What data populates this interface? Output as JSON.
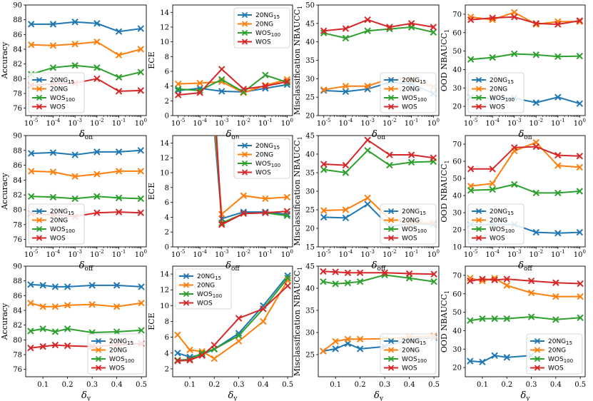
{
  "colors": {
    "blue": "#1f77b4",
    "orange": "#ff7f0e",
    "green": "#2ca02c",
    "red": "#d62728"
  },
  "series_names": [
    "20NG15",
    "20NG",
    "WOS100",
    "WOS"
  ],
  "chart_data": [
    {
      "type": "line",
      "row": 0,
      "col": 0,
      "xscale": "log",
      "x": [
        -5,
        -4,
        -3,
        -2,
        -1,
        0
      ],
      "xticklabels": [
        "10^-5",
        "10^-4",
        "10^-3",
        "10^-2",
        "10^-1",
        "10^0"
      ],
      "xlabel": "δ_on",
      "ylabel": "Accuracy",
      "ylim": [
        75,
        90
      ],
      "yticks": [
        76,
        78,
        80,
        82,
        84,
        86,
        88,
        90
      ],
      "legend": "bottom-left",
      "series": [
        {
          "name": "20NG15",
          "values": [
            87.4,
            87.4,
            87.7,
            87.5,
            86.4,
            86.8
          ]
        },
        {
          "name": "20NG",
          "values": [
            84.6,
            84.5,
            84.7,
            85.0,
            83.2,
            84.0
          ]
        },
        {
          "name": "WOS100",
          "values": [
            80.6,
            81.5,
            81.8,
            81.5,
            80.2,
            80.9
          ]
        },
        {
          "name": "WOS",
          "values": [
            79.1,
            79.3,
            79.4,
            80.0,
            78.3,
            78.4
          ]
        }
      ]
    },
    {
      "type": "line",
      "row": 0,
      "col": 1,
      "xscale": "log",
      "x": [
        -5,
        -4,
        -3,
        -2,
        -1,
        0
      ],
      "xticklabels": [
        "10^-5",
        "10^-4",
        "10^-3",
        "10^-2",
        "10^-1",
        "10^0"
      ],
      "xlabel": "δ_on",
      "ylabel": "ECE",
      "ylim": [
        0,
        15
      ],
      "yticks": [
        0,
        2,
        4,
        6,
        8,
        10,
        12,
        14
      ],
      "legend": "top-right",
      "series": [
        {
          "name": "20NG15",
          "values": [
            3.4,
            3.7,
            3.3,
            3.2,
            3.7,
            4.2
          ]
        },
        {
          "name": "20NG",
          "values": [
            4.3,
            4.4,
            4.6,
            3.1,
            4.1,
            4.9
          ]
        },
        {
          "name": "WOS100",
          "values": [
            3.6,
            3.4,
            4.9,
            3.2,
            5.5,
            4.5
          ]
        },
        {
          "name": "WOS",
          "values": [
            2.8,
            3.1,
            6.3,
            3.6,
            4.0,
            4.6
          ]
        }
      ]
    },
    {
      "type": "line",
      "row": 0,
      "col": 2,
      "xscale": "log",
      "x": [
        -5,
        -4,
        -3,
        -2,
        -1,
        0
      ],
      "xticklabels": [
        "10^-5",
        "10^-4",
        "10^-3",
        "10^-2",
        "10^-1",
        "10^0"
      ],
      "xlabel": "δ_on",
      "ylabel": "Misclassification NBAUCC1",
      "ylim": [
        20,
        50
      ],
      "yticks": [
        20,
        25,
        30,
        35,
        40,
        45,
        50
      ],
      "legend": "bottom-right",
      "series": [
        {
          "name": "20NG15",
          "values": [
            26.8,
            26.5,
            27.2,
            29.0,
            28.6,
            26.0
          ]
        },
        {
          "name": "20NG",
          "values": [
            27.0,
            28.0,
            28.0,
            30.0,
            29.8,
            27.8
          ]
        },
        {
          "name": "WOS100",
          "values": [
            42.4,
            41.0,
            43.0,
            43.5,
            44.0,
            42.6
          ]
        },
        {
          "name": "WOS",
          "values": [
            43.0,
            43.6,
            46.0,
            44.0,
            45.0,
            44.0
          ]
        }
      ]
    },
    {
      "type": "line",
      "row": 0,
      "col": 3,
      "xscale": "log",
      "x": [
        -5,
        -4,
        -3,
        -2,
        -1,
        0
      ],
      "xticklabels": [
        "10^-5",
        "10^-4",
        "10^-3",
        "10^-2",
        "10^-1",
        "10^0"
      ],
      "xlabel": "δ_on",
      "ylabel": "OOD NBAUCC1",
      "ylim": [
        15,
        75
      ],
      "yticks": [
        20,
        30,
        40,
        50,
        60,
        70
      ],
      "legend": "bottom-left",
      "series": [
        {
          "name": "20NG15",
          "values": [
            25.0,
            24.0,
            24.5,
            22.0,
            25.0,
            21.5
          ]
        },
        {
          "name": "20NG",
          "values": [
            68.5,
            67.0,
            71.0,
            64.5,
            66.0,
            66.0
          ]
        },
        {
          "name": "WOS100",
          "values": [
            45.5,
            46.5,
            48.5,
            48.0,
            47.0,
            47.3
          ]
        },
        {
          "name": "WOS",
          "values": [
            67.0,
            68.0,
            68.5,
            65.0,
            64.5,
            66.5
          ]
        }
      ]
    },
    {
      "type": "line",
      "row": 1,
      "col": 0,
      "xscale": "log",
      "x": [
        -5,
        -4,
        -3,
        -2,
        -1,
        0
      ],
      "xticklabels": [
        "10^-5",
        "10^-4",
        "10^-3",
        "10^-2",
        "10^-1",
        "10^0"
      ],
      "xlabel": "δ_off",
      "ylabel": "Accuracy",
      "ylim": [
        75,
        90
      ],
      "yticks": [
        76,
        78,
        80,
        82,
        84,
        86,
        88,
        90
      ],
      "legend": "bottom-left",
      "series": [
        {
          "name": "20NG15",
          "values": [
            87.6,
            87.7,
            87.4,
            87.8,
            87.8,
            88.0
          ]
        },
        {
          "name": "20NG",
          "values": [
            85.2,
            85.1,
            84.5,
            84.8,
            85.2,
            85.2
          ]
        },
        {
          "name": "WOS100",
          "values": [
            81.8,
            81.7,
            81.5,
            81.8,
            81.6,
            81.5
          ]
        },
        {
          "name": "WOS",
          "values": [
            79.5,
            79.3,
            79.1,
            79.6,
            79.7,
            79.6
          ]
        }
      ]
    },
    {
      "type": "line",
      "row": 1,
      "col": 1,
      "xscale": "log",
      "x": [
        -5,
        -4,
        -3,
        -2,
        -1,
        0
      ],
      "xticklabels": [
        "10^-5",
        "10^-4",
        "10^-3",
        "10^-2",
        "10^-1",
        "10^0"
      ],
      "xlabel": "δ_off",
      "ylabel": "ECE",
      "ylim": [
        0,
        15
      ],
      "yticks": [
        0,
        2,
        4,
        6,
        8,
        10,
        12,
        14
      ],
      "legend": "top-right",
      "clip": true,
      "series": [
        {
          "name": "20NG15",
          "values": [
            null,
            null,
            3.8,
            4.7,
            4.7,
            4.4
          ]
        },
        {
          "name": "20NG",
          "values": [
            null,
            null,
            4.4,
            6.9,
            6.5,
            6.7
          ]
        },
        {
          "name": "WOS100",
          "values": [
            null,
            null,
            3.2,
            4.5,
            4.6,
            4.2
          ]
        },
        {
          "name": "WOS",
          "values": [
            null,
            null,
            3.0,
            4.5,
            4.6,
            4.8
          ]
        }
      ],
      "offscale_start": {
        "x": -3.35,
        "y": 16
      }
    },
    {
      "type": "line",
      "row": 1,
      "col": 2,
      "xscale": "log",
      "x": [
        -5,
        -4,
        -3,
        -2,
        -1,
        0
      ],
      "xticklabels": [
        "10^-5",
        "10^-4",
        "10^-3",
        "10^-2",
        "10^-1",
        "10^0"
      ],
      "xlabel": "δ_off",
      "ylabel": "Misclassification NBAUCC1",
      "ylim": [
        15,
        45
      ],
      "yticks": [
        15,
        20,
        25,
        30,
        35,
        40,
        45
      ],
      "legend": "bottom-right",
      "series": [
        {
          "name": "20NG15",
          "values": [
            23.0,
            22.8,
            26.5,
            20.5,
            21.3,
            21.0
          ]
        },
        {
          "name": "20NG",
          "values": [
            24.8,
            25.0,
            28.2,
            22.5,
            21.5,
            21.5
          ]
        },
        {
          "name": "WOS100",
          "values": [
            35.8,
            35.0,
            41.0,
            37.0,
            37.8,
            38.0
          ]
        },
        {
          "name": "WOS",
          "values": [
            37.3,
            37.0,
            43.8,
            39.8,
            39.8,
            39.0
          ]
        }
      ]
    },
    {
      "type": "line",
      "row": 1,
      "col": 3,
      "xscale": "log",
      "x": [
        -5,
        -4,
        -3,
        -2,
        -1,
        0
      ],
      "xticklabels": [
        "10^-5",
        "10^-4",
        "10^-3",
        "10^-2",
        "10^-1",
        "10^0"
      ],
      "xlabel": "δ_off",
      "ylabel": "OOD NBAUCC1",
      "ylim": [
        10,
        75
      ],
      "yticks": [
        10,
        20,
        30,
        40,
        50,
        60,
        70
      ],
      "legend": "bottom-left",
      "series": [
        {
          "name": "20NG15",
          "values": [
            23.0,
            23.0,
            23.0,
            18.5,
            18.0,
            18.5
          ]
        },
        {
          "name": "20NG",
          "values": [
            45.5,
            47.0,
            66.0,
            71.0,
            57.5,
            56.5
          ]
        },
        {
          "name": "WOS100",
          "values": [
            43.0,
            43.5,
            46.5,
            41.5,
            41.5,
            42.5
          ]
        },
        {
          "name": "WOS",
          "values": [
            55.5,
            55.5,
            68.0,
            68.5,
            63.5,
            63.0
          ]
        }
      ]
    },
    {
      "type": "line",
      "row": 2,
      "col": 0,
      "xscale": "linear",
      "x": [
        0.05,
        0.1,
        0.15,
        0.2,
        0.3,
        0.4,
        0.5
      ],
      "xticks": [
        0.1,
        0.2,
        0.3,
        0.4,
        0.5
      ],
      "xticklabels": [
        "0.1",
        "0.2",
        "0.3",
        "0.4",
        "0.5"
      ],
      "xlim": [
        0.03,
        0.52
      ],
      "xlabel": "δ_y",
      "ylabel": "Accuracy",
      "ylim": [
        75,
        90
      ],
      "yticks": [
        76,
        78,
        80,
        82,
        84,
        86,
        88,
        90
      ],
      "legend": "bottom-right",
      "series": [
        {
          "name": "20NG15",
          "values": [
            87.5,
            87.4,
            87.2,
            87.2,
            87.4,
            87.4,
            87.2
          ]
        },
        {
          "name": "20NG",
          "values": [
            85.0,
            84.5,
            84.5,
            84.7,
            84.8,
            84.5,
            85.0
          ]
        },
        {
          "name": "WOS100",
          "values": [
            81.2,
            81.5,
            81.1,
            81.5,
            81.0,
            81.1,
            81.3
          ]
        },
        {
          "name": "WOS",
          "values": [
            78.9,
            79.1,
            79.3,
            79.2,
            79.1,
            79.3,
            79.5
          ]
        }
      ]
    },
    {
      "type": "line",
      "row": 2,
      "col": 1,
      "xscale": "linear",
      "x": [
        0.05,
        0.1,
        0.15,
        0.2,
        0.3,
        0.4,
        0.5
      ],
      "xticks": [
        0.1,
        0.2,
        0.3,
        0.4,
        0.5
      ],
      "xticklabels": [
        "0.1",
        "0.2",
        "0.3",
        "0.4",
        "0.5"
      ],
      "xlim": [
        0.03,
        0.52
      ],
      "xlabel": "δ_y",
      "ylabel": "ECE",
      "ylim": [
        1,
        15
      ],
      "yticks": [
        2,
        4,
        6,
        8,
        10,
        12,
        14
      ],
      "legend": "top-left",
      "series": [
        {
          "name": "20NG15",
          "values": [
            4.0,
            3.5,
            3.8,
            4.5,
            6.5,
            10.0,
            13.8
          ]
        },
        {
          "name": "20NG",
          "values": [
            6.3,
            4.4,
            4.2,
            3.3,
            5.5,
            8.0,
            13.2
          ]
        },
        {
          "name": "WOS100",
          "values": [
            3.1,
            3.2,
            4.0,
            4.5,
            6.2,
            9.6,
            13.5
          ]
        },
        {
          "name": "WOS",
          "values": [
            3.0,
            3.1,
            3.7,
            5.0,
            8.4,
            9.6,
            12.5
          ]
        }
      ]
    },
    {
      "type": "line",
      "row": 2,
      "col": 2,
      "xscale": "linear",
      "x": [
        0.05,
        0.1,
        0.15,
        0.2,
        0.3,
        0.4,
        0.5
      ],
      "xticks": [
        0.1,
        0.2,
        0.3,
        0.4,
        0.5
      ],
      "xticklabels": [
        "0.1",
        "0.2",
        "0.3",
        "0.4",
        "0.5"
      ],
      "xlim": [
        0.03,
        0.52
      ],
      "xlabel": "δ_y",
      "ylabel": "Misclassification NBAUCC1",
      "ylim": [
        20,
        45
      ],
      "yticks": [
        25,
        30,
        35,
        40,
        45
      ],
      "legend": "bottom-right",
      "series": [
        {
          "name": "20NG15",
          "values": [
            25.8,
            26.3,
            27.5,
            26.3,
            26.8,
            28.5,
            28.8
          ]
        },
        {
          "name": "20NG",
          "values": [
            25.8,
            28.0,
            28.5,
            28.5,
            28.6,
            29.0,
            29.2
          ]
        },
        {
          "name": "WOS100",
          "values": [
            41.5,
            41.0,
            41.2,
            41.5,
            43.0,
            42.3,
            41.5
          ]
        },
        {
          "name": "WOS",
          "values": [
            43.8,
            43.7,
            43.5,
            43.5,
            43.5,
            43.3,
            43.2
          ]
        }
      ]
    },
    {
      "type": "line",
      "row": 2,
      "col": 3,
      "xscale": "linear",
      "x": [
        0.05,
        0.1,
        0.15,
        0.2,
        0.3,
        0.4,
        0.5
      ],
      "xticks": [
        0.1,
        0.2,
        0.3,
        0.4,
        0.5
      ],
      "xticklabels": [
        "0.1",
        "0.2",
        "0.3",
        "0.4",
        "0.5"
      ],
      "xlim": [
        0.03,
        0.52
      ],
      "xlabel": "δ_y",
      "ylabel": "OOD NBAUCC1",
      "ylim": [
        15,
        75
      ],
      "yticks": [
        20,
        30,
        40,
        50,
        60,
        70
      ],
      "legend": "bottom-right",
      "series": [
        {
          "name": "20NG15",
          "values": [
            23.5,
            23.0,
            26.5,
            25.5,
            26.5,
            null,
            null
          ]
        },
        {
          "name": "20NG",
          "values": [
            68.5,
            67.0,
            68.5,
            64.5,
            60.5,
            58.5,
            58.5
          ]
        },
        {
          "name": "WOS100",
          "values": [
            45.5,
            46.5,
            46.5,
            46.5,
            47.5,
            46.0,
            47.0
          ]
        },
        {
          "name": "WOS",
          "values": [
            67.0,
            68.0,
            67.5,
            68.0,
            67.0,
            66.0,
            65.5
          ]
        }
      ]
    }
  ]
}
